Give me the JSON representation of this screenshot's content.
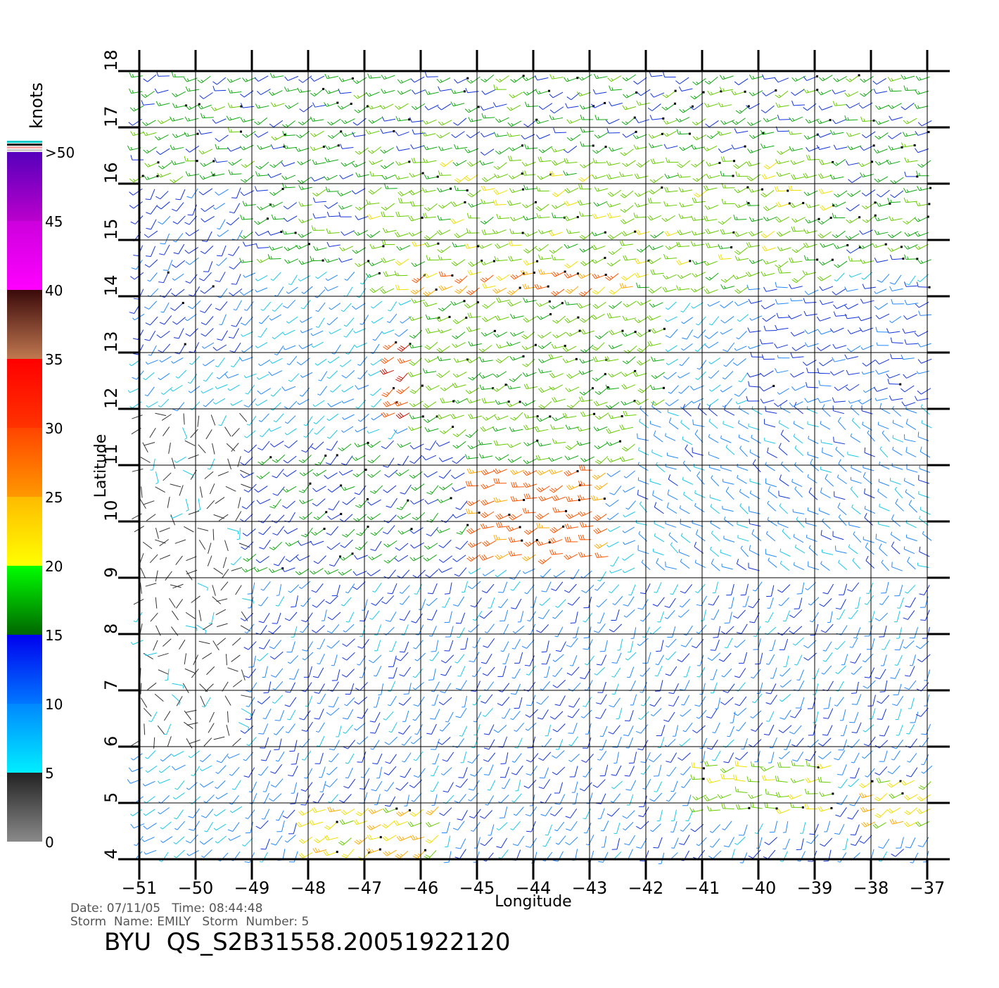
{
  "chart_data": {
    "type": "wind-barb-map",
    "xlabel": "Longitude",
    "ylabel": "Latitude",
    "xlim": [
      -51,
      -36.6
    ],
    "ylim": [
      4,
      18
    ],
    "x_ticks": [
      -51,
      -50,
      -49,
      -48,
      -47,
      -46,
      -45,
      -44,
      -43,
      -42,
      -41,
      -40,
      -39,
      -38,
      -37
    ],
    "y_ticks": [
      4,
      5,
      6,
      7,
      8,
      9,
      10,
      11,
      12,
      13,
      14,
      15,
      16,
      17,
      18
    ],
    "x_tick_labels": [
      "−51",
      "−50",
      "−49",
      "−48",
      "−47",
      "−46",
      "−45",
      "−44",
      "−43",
      "−42",
      "−41",
      "−40",
      "−39",
      "−38",
      "−37"
    ],
    "y_tick_labels": [
      "4",
      "5",
      "6",
      "7",
      "8",
      "9",
      "10",
      "11",
      "12",
      "13",
      "14",
      "15",
      "16",
      "17",
      "18"
    ],
    "grid": true,
    "colorbar": {
      "title": "knots",
      "bands": [
        {
          "from": 0,
          "to": 5,
          "colors": [
            "#8a8a8a",
            "#222222"
          ]
        },
        {
          "from": 5,
          "to": 10,
          "colors": [
            "#00eeff",
            "#0088ff"
          ]
        },
        {
          "from": 10,
          "to": 15,
          "colors": [
            "#0077ff",
            "#0000ee"
          ]
        },
        {
          "from": 15,
          "to": 20,
          "colors": [
            "#006600",
            "#00ff00"
          ]
        },
        {
          "from": 20,
          "to": 25,
          "colors": [
            "#ffff00",
            "#ffbb00"
          ]
        },
        {
          "from": 25,
          "to": 30,
          "colors": [
            "#ff9900",
            "#ff4400"
          ]
        },
        {
          "from": 30,
          "to": 35,
          "colors": [
            "#ff3300",
            "#ff0000"
          ]
        },
        {
          "from": 35,
          "to": 40,
          "colors": [
            "#c07850",
            "#3a0a0a"
          ]
        },
        {
          "from": 40,
          "to": 45,
          "colors": [
            "#ff00ff",
            "#cc00dd"
          ]
        },
        {
          "from": 45,
          "to": 50,
          "colors": [
            "#bb00cc",
            "#5500bb"
          ]
        }
      ],
      "tick_labels": [
        {
          "value": 0,
          "label": "0"
        },
        {
          "value": 5,
          "label": "5"
        },
        {
          "value": 10,
          "label": "10"
        },
        {
          "value": 15,
          "label": "15"
        },
        {
          "value": 20,
          "label": "20"
        },
        {
          "value": 25,
          "label": "25"
        },
        {
          "value": 30,
          "label": "30"
        },
        {
          "value": 35,
          "label": "35"
        },
        {
          "value": 40,
          "label": "40"
        },
        {
          "value": 45,
          "label": "45"
        },
        {
          "value": 50,
          "label": ">50"
        }
      ]
    },
    "wind_regions": [
      {
        "lon": [
          -51,
          -36.6
        ],
        "lat": [
          14.6,
          18
        ],
        "speed": 16,
        "dir": 250
      },
      {
        "lon": [
          -46.8,
          -38.5
        ],
        "lat": [
          14,
          16.5
        ],
        "speed": 20,
        "dir": 250
      },
      {
        "lon": [
          -46,
          -42
        ],
        "lat": [
          13.4,
          14.6
        ],
        "speed": 27,
        "dir": 245
      },
      {
        "lon": [
          -46.5,
          -44.5
        ],
        "lat": [
          11.8,
          13.2
        ],
        "speed": 31,
        "dir": 240
      },
      {
        "lon": [
          -45,
          -42.7
        ],
        "lat": [
          9.4,
          11.2
        ],
        "speed": 29,
        "dir": 250
      },
      {
        "lon": [
          -46,
          -41.5
        ],
        "lat": [
          11,
          14
        ],
        "speed": 19,
        "dir": 245
      },
      {
        "lon": [
          -51,
          -49
        ],
        "lat": [
          13,
          16
        ],
        "speed": 12,
        "dir": 220
      },
      {
        "lon": [
          -40,
          -36.6
        ],
        "lat": [
          12,
          14.2
        ],
        "speed": 12,
        "dir": 255
      },
      {
        "lon": [
          -42,
          -36.6
        ],
        "lat": [
          8.5,
          12
        ],
        "speed": 9,
        "dir": 300
      },
      {
        "lon": [
          -51,
          -49
        ],
        "lat": [
          6,
          12
        ],
        "speed": 3,
        "dir": 180
      },
      {
        "lon": [
          -49,
          -45
        ],
        "lat": [
          9,
          11.5
        ],
        "speed": 14,
        "dir": 230
      },
      {
        "lon": [
          -49,
          -36.6
        ],
        "lat": [
          4,
          9
        ],
        "speed": 10,
        "dir": 210
      },
      {
        "lon": [
          -48,
          -45.5
        ],
        "lat": [
          4.1,
          5.1
        ],
        "speed": 24,
        "dir": 240
      },
      {
        "lon": [
          -41,
          -38.5
        ],
        "lat": [
          4.8,
          5.8
        ],
        "speed": 21,
        "dir": 260
      },
      {
        "lon": [
          -38,
          -36.8
        ],
        "lat": [
          4.5,
          5.5
        ],
        "speed": 23,
        "dir": 240
      }
    ]
  },
  "footer": {
    "date_line": "Date: 07/11/05   Time: 08:44:48",
    "storm_line": "Storm  Name: EMILY   Storm  Number: 5",
    "file_id": "BYU  QS_S2B31558.20051922120"
  }
}
